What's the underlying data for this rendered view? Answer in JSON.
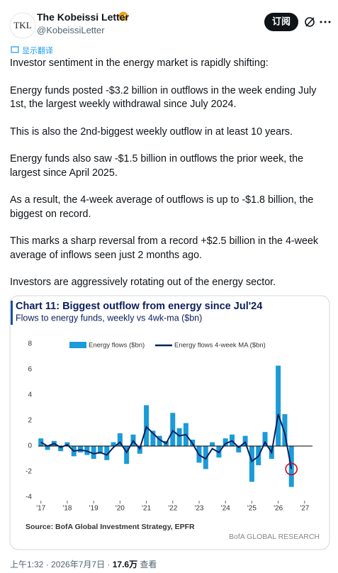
{
  "header": {
    "avatar": "TKL",
    "name": "The Kobeissi Letter",
    "handle": "@KobeissiLetter",
    "subscribe": "订阅"
  },
  "translate": "显示翻译",
  "paragraphs": [
    "Investor sentiment in the energy market is rapidly shifting:",
    "Energy funds posted -$3.2 billion in outflows in the week ending July 1st, the largest weekly withdrawal since July 2024.",
    "This is also the 2nd-biggest weekly outflow in at least 10 years.",
    "Energy funds also saw -$1.5 billion in outflows the prior week, the largest since April 2025.",
    "As a result, the 4-week average of outflows is up to -$1.8 billion, the biggest on record.",
    "This marks a sharp reversal from a record +$2.5 billion in the 4-week average of inflows seen just 2 months ago.",
    "Investors are aggressively rotating out of the energy sector."
  ],
  "chart_data": {
    "type": "bar-line",
    "title": "Chart 11: Biggest outflow from energy since Jul'24",
    "subtitle": "Flows to energy funds, weekly vs 4wk-ma ($bn)",
    "x": [
      2017,
      2017.25,
      2017.5,
      2017.75,
      2018,
      2018.25,
      2018.5,
      2018.75,
      2019,
      2019.25,
      2019.5,
      2019.75,
      2020,
      2020.25,
      2020.5,
      2020.75,
      2021,
      2021.25,
      2021.5,
      2021.75,
      2022,
      2022.25,
      2022.5,
      2022.75,
      2023,
      2023.25,
      2023.5,
      2023.75,
      2024,
      2024.25,
      2024.5,
      2024.75,
      2025,
      2025.25,
      2025.5,
      2025.75,
      2026,
      2026.25,
      2026.5
    ],
    "series": [
      {
        "name": "Energy flows ($bn)",
        "color": "#1b9bd7",
        "values": [
          0.6,
          -0.3,
          0.4,
          -0.4,
          0.3,
          -0.8,
          -0.5,
          -0.7,
          -1.0,
          -0.6,
          -1.1,
          0.3,
          1.0,
          -1.4,
          0.9,
          -0.6,
          3.2,
          1.2,
          0.8,
          0.4,
          2.6,
          1.4,
          1.8,
          0.5,
          -1.3,
          -1.8,
          0.3,
          -0.9,
          0.6,
          0.9,
          -0.5,
          0.8,
          -2.8,
          -1.5,
          1.1,
          -1.0,
          6.3,
          2.5,
          -3.2
        ]
      },
      {
        "name": "Energy flows 4-week MA ($bn)",
        "color": "#0b1f5c",
        "values": [
          0.3,
          0.0,
          0.2,
          -0.1,
          0.1,
          -0.4,
          -0.3,
          -0.4,
          -0.6,
          -0.5,
          -0.7,
          -0.1,
          0.3,
          -0.5,
          0.4,
          -0.2,
          1.5,
          1.0,
          0.5,
          0.2,
          1.2,
          0.8,
          0.9,
          0.2,
          -0.7,
          -1.0,
          -0.2,
          -0.5,
          0.2,
          0.4,
          -0.1,
          0.3,
          -1.2,
          -0.8,
          0.3,
          -0.5,
          2.5,
          1.0,
          -1.8
        ]
      }
    ],
    "xlim": [
      2016.9,
      2027.3
    ],
    "xticks": [
      {
        "value": 2017,
        "label": "'17"
      },
      {
        "value": 2018,
        "label": "'18"
      },
      {
        "value": 2019,
        "label": "'19"
      },
      {
        "value": 2020,
        "label": "'20"
      },
      {
        "value": 2021,
        "label": "'21"
      },
      {
        "value": 2022,
        "label": "'22"
      },
      {
        "value": 2023,
        "label": "'23"
      },
      {
        "value": 2024,
        "label": "'24"
      },
      {
        "value": 2025,
        "label": "'25"
      },
      {
        "value": 2026,
        "label": "'26"
      },
      {
        "value": 2027,
        "label": "'27"
      }
    ],
    "ylim": [
      -4.5,
      8.5
    ],
    "yticks": [
      8,
      6,
      4,
      2,
      0,
      -2,
      -4
    ],
    "source": "Source: BofA Global Investment Strategy, EPFR",
    "brand": "BofA GLOBAL RESEARCH"
  },
  "footer": {
    "time": "上午1:32 · 2026年7月7日 · ",
    "views": "17.6万",
    "views_label": " 查看"
  }
}
